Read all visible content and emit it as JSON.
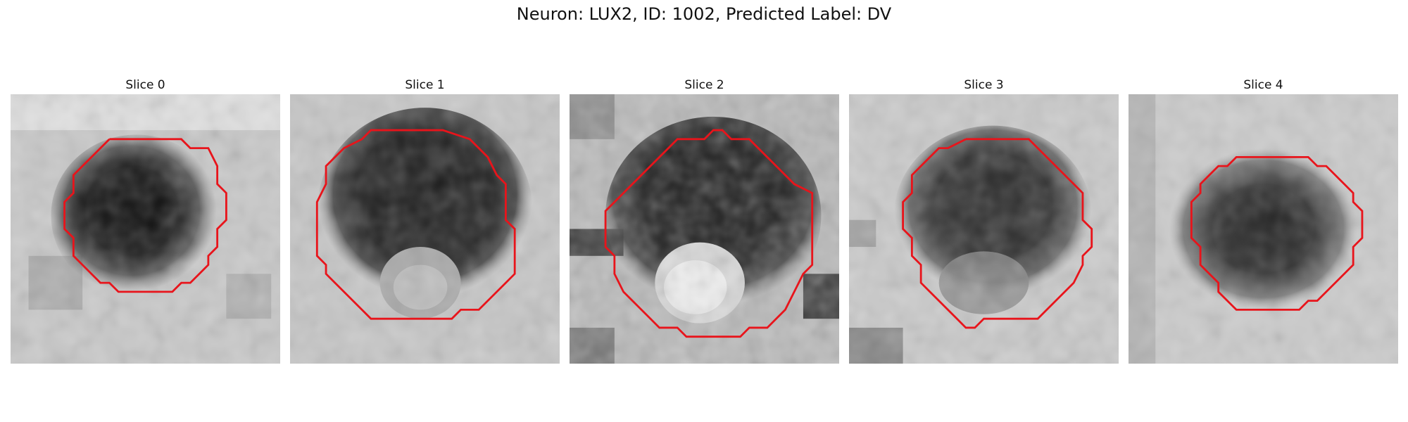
{
  "figure": {
    "title": "Neuron: LUX2, ID: 1002, Predicted Label: DV",
    "outline_color": "#e8141b"
  },
  "panels": [
    {
      "title": "Slice 0"
    },
    {
      "title": "Slice 1"
    },
    {
      "title": "Slice 2"
    },
    {
      "title": "Slice 3"
    },
    {
      "title": "Slice 4"
    }
  ]
}
